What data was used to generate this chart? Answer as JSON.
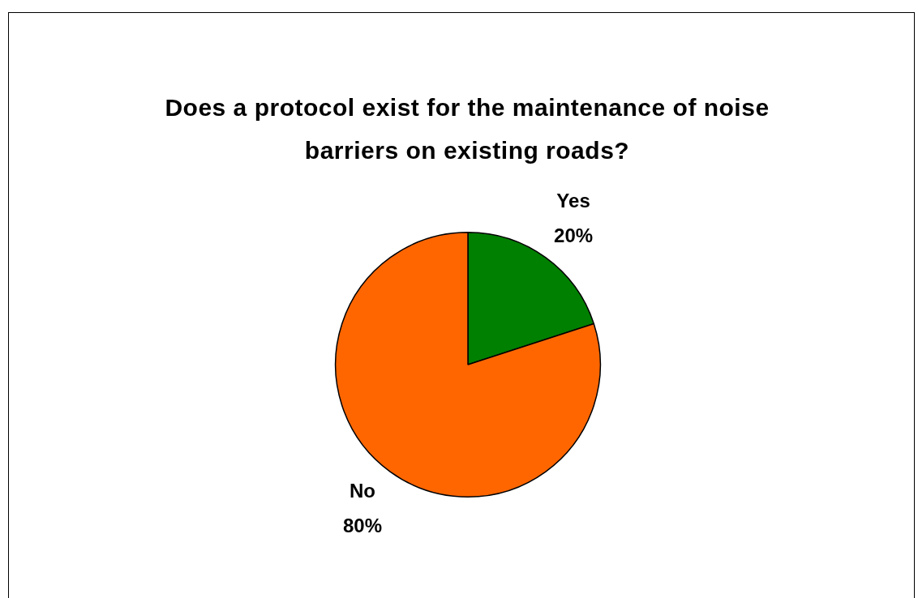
{
  "chart_data": {
    "type": "pie",
    "title": "Does a protocol exist for the maintenance of noise barriers on existing roads?",
    "categories": [
      "Yes",
      "No"
    ],
    "values": [
      20,
      80
    ],
    "value_labels": [
      "20%",
      "80%"
    ],
    "colors": [
      "#008000",
      "#ff6600"
    ],
    "legend": false
  }
}
